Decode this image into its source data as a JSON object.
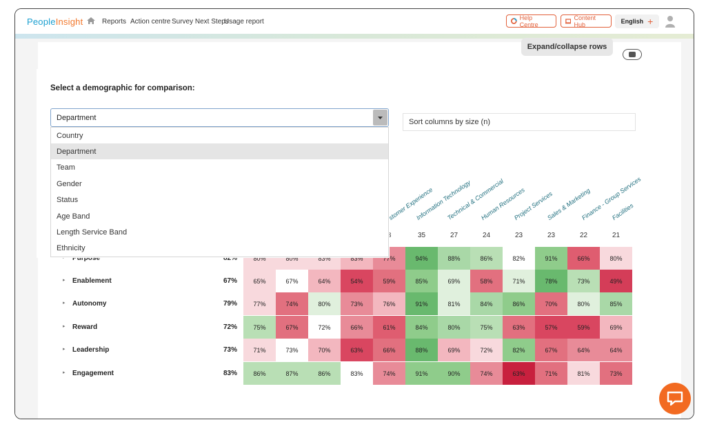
{
  "header": {
    "logo_main": "People",
    "logo_accent": "Insight",
    "nav": [
      "Reports",
      "Action centre",
      "Survey Next Steps",
      "Usage report"
    ],
    "help_label": "Help Centre",
    "hub_label": "Content Hub",
    "language": "English",
    "language_plus": "+"
  },
  "toolbar": {
    "expand_label": "Expand/collapse rows",
    "sort_label": "Sort columns by size (n)"
  },
  "dropdown": {
    "title": "Select a demographic for comparison:",
    "selected": "Department",
    "options": [
      "Country",
      "Department",
      "Team",
      "Gender",
      "Status",
      "Age Band",
      "Length Service Band",
      "Ethnicity"
    ]
  },
  "heatmap": {
    "visible_headers": [
      "stomer Experience",
      "Information Technology",
      "Technical & Commercial",
      "Human Resources",
      "Project Services",
      "Sales & Marketing",
      "Finance - Group Services",
      "Facilities"
    ],
    "counts": [
      "3",
      "35",
      "27",
      "24",
      "23",
      "23",
      "22",
      "21"
    ],
    "rows": [
      {
        "label": "Purpose",
        "overall": "82%",
        "values": [
          "80%",
          "80%",
          "83%",
          "83%",
          "77%",
          "94%",
          "88%",
          "86%",
          "82%",
          "91%",
          "66%",
          "80%"
        ]
      },
      {
        "label": "Enablement",
        "overall": "67%",
        "values": [
          "65%",
          "67%",
          "64%",
          "54%",
          "59%",
          "85%",
          "69%",
          "58%",
          "71%",
          "78%",
          "73%",
          "49%"
        ]
      },
      {
        "label": "Autonomy",
        "overall": "79%",
        "values": [
          "77%",
          "74%",
          "80%",
          "73%",
          "76%",
          "91%",
          "81%",
          "84%",
          "86%",
          "70%",
          "80%",
          "85%"
        ]
      },
      {
        "label": "Reward",
        "overall": "72%",
        "values": [
          "75%",
          "67%",
          "72%",
          "66%",
          "61%",
          "84%",
          "80%",
          "75%",
          "63%",
          "57%",
          "59%",
          "69%"
        ]
      },
      {
        "label": "Leadership",
        "overall": "73%",
        "values": [
          "71%",
          "73%",
          "70%",
          "63%",
          "66%",
          "88%",
          "69%",
          "72%",
          "82%",
          "67%",
          "64%",
          "64%"
        ]
      },
      {
        "label": "Engagement",
        "overall": "83%",
        "values": [
          "86%",
          "87%",
          "86%",
          "83%",
          "74%",
          "91%",
          "90%",
          "74%",
          "63%",
          "71%",
          "81%",
          "73%"
        ]
      }
    ],
    "cell_colors": [
      [
        "#f8d9dd",
        "#f8d9dd",
        "#f8d9dd",
        "#f3b7bf",
        "#e88b98",
        "#69b96e",
        "#a9d8a7",
        "#b9dfb5",
        "#ffffff",
        "#8fcc8b",
        "#df5d70",
        "#f8d9dd"
      ],
      [
        "#f8d9dd",
        "#ffffff",
        "#f3b7bf",
        "#d94660",
        "#e2707f",
        "#8fcc8b",
        "#e0f0dd",
        "#e2707f",
        "#e0f0dd",
        "#69b96e",
        "#b9dfb5",
        "#d43d58"
      ],
      [
        "#f8d9dd",
        "#e2707f",
        "#e0f0dd",
        "#e88b98",
        "#f3b7bf",
        "#69b96e",
        "#e0f0dd",
        "#a9d8a7",
        "#8fcc8b",
        "#e2707f",
        "#e0f0dd",
        "#a9d8a7"
      ],
      [
        "#b9dfb5",
        "#e2707f",
        "#ffffff",
        "#e88b98",
        "#df5d70",
        "#8fcc8b",
        "#a9d8a7",
        "#b9dfb5",
        "#e2707f",
        "#d94660",
        "#d94660",
        "#f3b7bf"
      ],
      [
        "#f8d9dd",
        "#ffffff",
        "#f3b7bf",
        "#d94660",
        "#e2707f",
        "#69b96e",
        "#f3b7bf",
        "#f8d9dd",
        "#8fcc8b",
        "#e2707f",
        "#e88b98",
        "#e88b98"
      ],
      [
        "#b9dfb5",
        "#b9dfb5",
        "#b9dfb5",
        "#ffffff",
        "#e88b98",
        "#8fcc8b",
        "#8fcc8b",
        "#e88b98",
        "#c8203e",
        "#e2707f",
        "#f8d9dd",
        "#e2707f"
      ]
    ]
  },
  "colors": {
    "brand": "#1a9fd0",
    "accent": "#e2603a",
    "chat": "#f26a21"
  },
  "icons": [
    "home-icon",
    "help-icon",
    "content-hub-icon",
    "user-avatar-icon",
    "download-icon",
    "dropdown-caret-icon",
    "chat-icon"
  ]
}
